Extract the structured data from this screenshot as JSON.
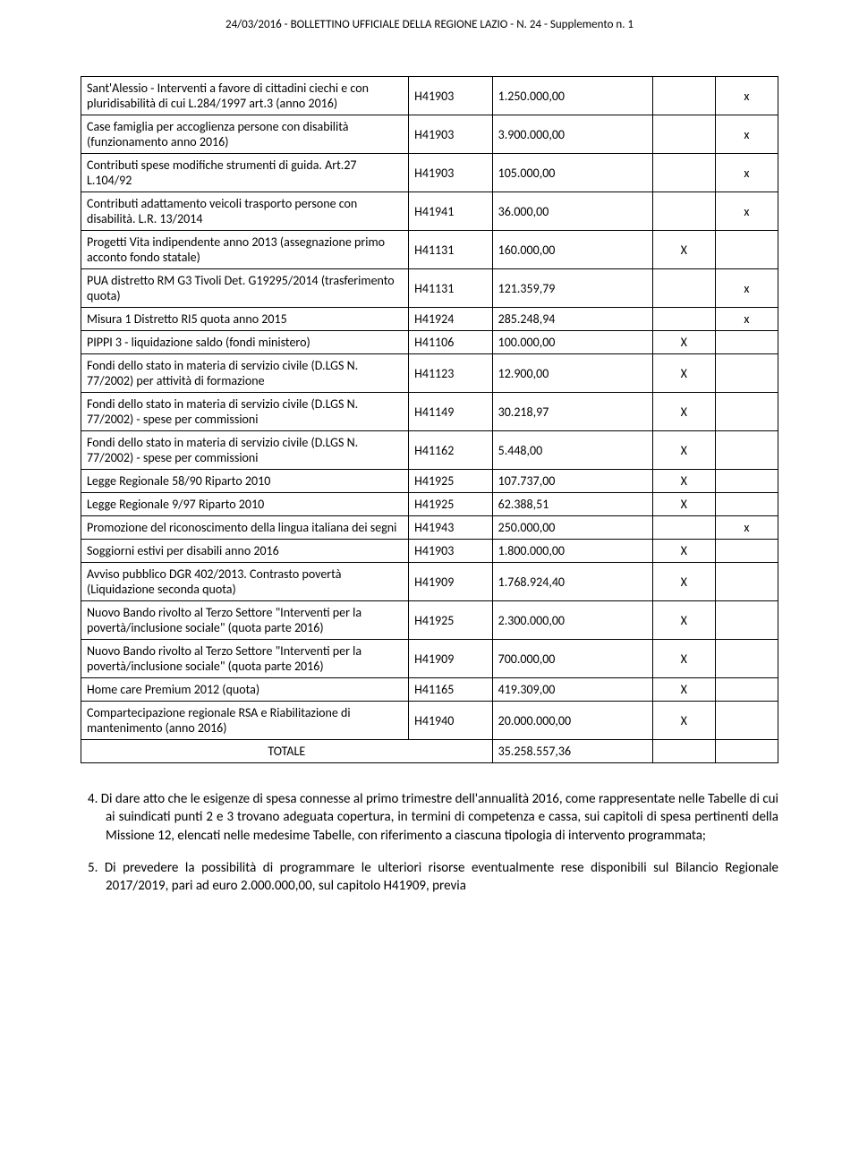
{
  "header": "24/03/2016 - BOLLETTINO UFFICIALE DELLA REGIONE LAZIO - N. 24 - Supplemento n. 1",
  "rows": [
    {
      "desc": "Sant'Alessio - Interventi a favore di cittadini ciechi e con pluridisabilità di cui L.284/1997 art.3 (anno 2016)",
      "code": "H41903",
      "amt": "1.250.000,00",
      "c4": "",
      "c5": "x"
    },
    {
      "desc": "Case famiglia per accoglienza persone con disabilità (funzionamento anno 2016)",
      "code": "H41903",
      "amt": "3.900.000,00",
      "c4": "",
      "c5": "x"
    },
    {
      "desc": "Contributi spese modifiche strumenti di guida. Art.27 L.104/92",
      "code": "H41903",
      "amt": "105.000,00",
      "c4": "",
      "c5": "x"
    },
    {
      "desc": "Contributi adattamento veicoli trasporto persone con disabilità. L.R. 13/2014",
      "code": "H41941",
      "amt": "36.000,00",
      "c4": "",
      "c5": "x"
    },
    {
      "desc": "Progetti Vita indipendente anno 2013 (assegnazione primo acconto fondo statale)",
      "code": "H41131",
      "amt": "160.000,00",
      "c4": "X",
      "c5": ""
    },
    {
      "desc": "PUA distretto RM  G3 Tivoli Det. G19295/2014 (trasferimento quota)",
      "code": "H41131",
      "amt": "121.359,79",
      "c4": "",
      "c5": "x"
    },
    {
      "desc": "Misura 1 Distretto RI5 quota anno 2015",
      "code": "H41924",
      "amt": "285.248,94",
      "c4": "",
      "c5": "x"
    },
    {
      "desc": "PIPPI 3 - liquidazione saldo (fondi ministero)",
      "code": "H41106",
      "amt": "100.000,00",
      "c4": "X",
      "c5": ""
    },
    {
      "desc": "Fondi dello stato in materia di servizio civile (D.LGS N. 77/2002)  per attività di formazione",
      "code": "H41123",
      "amt": "12.900,00",
      "c4": "X",
      "c5": ""
    },
    {
      "desc": "Fondi dello stato in materia di servizio civile (D.LGS N. 77/2002) -  spese per commissioni",
      "code": "H41149",
      "amt": "30.218,97",
      "c4": "X",
      "c5": ""
    },
    {
      "desc": " Fondi dello stato in materia di servizio civile (D.LGS N. 77/2002) -  spese per commissioni",
      "code": "H41162",
      "amt": "5.448,00",
      "c4": "X",
      "c5": ""
    },
    {
      "desc": "Legge Regionale 58/90 Riparto 2010",
      "code": "H41925",
      "amt": "107.737,00",
      "c4": "X",
      "c5": ""
    },
    {
      "desc": "Legge Regionale 9/97 Riparto 2010",
      "code": "H41925",
      "amt": "62.388,51",
      "c4": "X",
      "c5": ""
    },
    {
      "desc": "Promozione del riconoscimento della lingua italiana dei segni",
      "code": "H41943",
      "amt": "250.000,00",
      "c4": "",
      "c5": "x"
    },
    {
      "desc": "Soggiorni estivi per disabili anno 2016",
      "code": "H41903",
      "amt": "1.800.000,00",
      "c4": "X",
      "c5": ""
    },
    {
      "desc": "Avviso pubblico DGR 402/2013. Contrasto povertà (Liquidazione seconda quota)",
      "code": "H41909",
      "amt": "1.768.924,40",
      "c4": "X",
      "c5": ""
    },
    {
      "desc": "Nuovo Bando rivolto al Terzo Settore \"Interventi per la povertà/inclusione sociale\" (quota parte 2016)",
      "code": "H41925",
      "amt": "2.300.000,00",
      "c4": "X",
      "c5": ""
    },
    {
      "desc": "Nuovo Bando rivolto al Terzo Settore \"Interventi per la povertà/inclusione sociale\" (quota parte 2016)",
      "code": "H41909",
      "amt": "700.000,00",
      "c4": "X",
      "c5": ""
    },
    {
      "desc": "Home care Premium 2012 (quota)",
      "code": "H41165",
      "amt": "419.309,00",
      "c4": "X",
      "c5": ""
    },
    {
      "desc": "Compartecipazione  regionale RSA  e Riabilitazione di mantenimento (anno 2016)",
      "code": "H41940",
      "amt": "20.000.000,00",
      "c4": "X",
      "c5": ""
    }
  ],
  "total": {
    "label": "TOTALE",
    "value": "35.258.557,36"
  },
  "para4": "4. Di dare atto che le esigenze di spesa connesse al primo trimestre dell'annualità 2016, come rappresentate nelle Tabelle di cui ai suindicati punti 2 e 3 trovano adeguata copertura, in termini di competenza e cassa, sui capitoli di spesa pertinenti della Missione 12, elencati nelle medesime Tabelle, con riferimento a ciascuna tipologia di intervento programmata;",
  "para5": "5. Di prevedere la possibilità di programmare le ulteriori risorse eventualmente rese disponibili sul Bilancio Regionale 2017/2019, pari ad euro 2.000.000,00, sul capitolo H41909, previa"
}
